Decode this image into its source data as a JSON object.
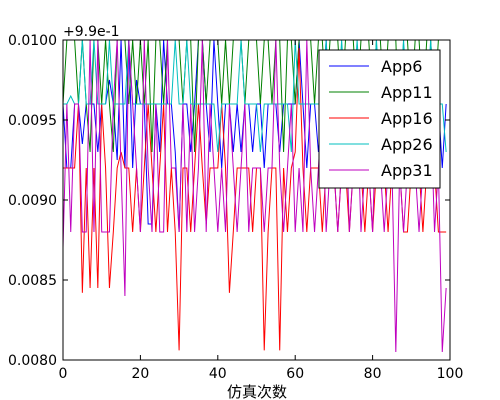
{
  "chart_data": {
    "type": "line",
    "xlabel": "仿真次数",
    "ylabel": "",
    "offset_text": "+9.9e-1",
    "xlim": [
      0,
      100
    ],
    "ylim": [
      0.008,
      0.01
    ],
    "x_ticks": [
      "0",
      "20",
      "40",
      "60",
      "80",
      "100"
    ],
    "y_ticks": [
      "0.0080",
      "0.0085",
      "0.0090",
      "0.0095",
      "0.0100"
    ],
    "grid": false,
    "legend_position": "top-right",
    "series": [
      {
        "name": "App6",
        "color": "#0000ff",
        "values": [
          0.0096,
          0.0092,
          0.0092,
          0.0096,
          0.0096,
          0.00935,
          0.0096,
          0.0096,
          0.0096,
          0.0093,
          0.0096,
          0.0096,
          0.00975,
          0.0096,
          0.00925,
          0.01,
          0.0092,
          0.01,
          0.0092,
          0.00975,
          0.0096,
          0.0096,
          0.00885,
          0.00885,
          0.0096,
          0.0093,
          0.01,
          0.0096,
          0.0096,
          0.0093,
          0.0088,
          0.0096,
          0.0096,
          0.0093,
          0.0096,
          0.01,
          0.01,
          0.0096,
          0.0093,
          0.01,
          0.0096,
          0.0092,
          0.0096,
          0.0096,
          0.0093,
          0.0096,
          0.0093,
          0.0096,
          0.0096,
          0.0093,
          0.0096,
          0.0096,
          0.0092,
          0.0096,
          0.0096,
          0.0096,
          0.0093,
          0.0096,
          0.0096,
          0.0096,
          0.0096,
          0.01,
          0.0096,
          0.0092,
          0.0096,
          0.0096,
          0.0093,
          0.0096,
          0.01,
          0.0093,
          0.0096,
          0.0096,
          0.0093,
          0.0096,
          0.0096,
          0.0096,
          0.0093,
          0.0096,
          0.0096,
          0.0096,
          0.0093,
          0.0096,
          0.0096,
          0.0093,
          0.0096,
          0.0096,
          0.0096,
          0.0093,
          0.0096,
          0.0096,
          0.0092,
          0.0096,
          0.0096,
          0.0096,
          0.0093,
          0.0096,
          0.0096,
          0.0096,
          0.0092,
          0.0096
        ]
      },
      {
        "name": "App11",
        "color": "#008000",
        "values": [
          0.0096,
          0.01,
          0.01,
          0.01,
          0.0096,
          0.01,
          0.0096,
          0.0093,
          0.01,
          0.01,
          0.0096,
          0.01,
          0.0096,
          0.0093,
          0.01,
          0.01,
          0.01,
          0.0096,
          0.01,
          0.0096,
          0.01,
          0.0096,
          0.01,
          0.0093,
          0.01,
          0.01,
          0.0096,
          0.01,
          0.01,
          0.01,
          0.01,
          0.0096,
          0.01,
          0.01,
          0.0093,
          0.01,
          0.01,
          0.0096,
          0.01,
          0.01,
          0.01,
          0.0096,
          0.01,
          0.0096,
          0.01,
          0.01,
          0.01,
          0.0096,
          0.01,
          0.01,
          0.01,
          0.0096,
          0.01,
          0.01,
          0.0096,
          0.01,
          0.01,
          0.0093,
          0.01,
          0.01,
          0.0096,
          0.01,
          0.01,
          0.01,
          0.01,
          0.0096,
          0.01,
          0.01,
          0.0096,
          0.01,
          0.01,
          0.01,
          0.0096,
          0.01,
          0.01,
          0.01,
          0.0096,
          0.01,
          0.01,
          0.01,
          0.0096,
          0.01,
          0.01,
          0.0096,
          0.01,
          0.01,
          0.01,
          0.0093,
          0.01,
          0.01,
          0.0096,
          0.01,
          0.01,
          0.0096,
          0.01,
          0.01,
          0.0096,
          0.01,
          0.01,
          0.01
        ]
      },
      {
        "name": "App16",
        "color": "#ff0000",
        "values": [
          0.0092,
          0.0092,
          0.0092,
          0.0092,
          0.0096,
          0.00842,
          0.0092,
          0.00845,
          0.0092,
          0.00845,
          0.0096,
          0.0092,
          0.00845,
          0.0088,
          0.0092,
          0.0093,
          0.0092,
          0.0092,
          0.0088,
          0.0092,
          0.0088,
          0.0092,
          0.0096,
          0.0092,
          0.0088,
          0.0092,
          0.0096,
          0.0088,
          0.0092,
          0.0088,
          0.00806,
          0.0092,
          0.0092,
          0.0088,
          0.0092,
          0.0096,
          0.0092,
          0.00885,
          0.0092,
          0.0092,
          0.0092,
          0.0096,
          0.0092,
          0.00842,
          0.0088,
          0.0092,
          0.0092,
          0.0092,
          0.0092,
          0.0088,
          0.0092,
          0.0092,
          0.00806,
          0.0088,
          0.0092,
          0.0092,
          0.00806,
          0.0092,
          0.0088,
          0.0092,
          0.0093,
          0.00995,
          0.0092,
          0.0088,
          0.0092,
          0.0092,
          0.0092,
          0.0088,
          0.0092,
          0.0092,
          0.0092,
          0.0088,
          0.0092,
          0.0092,
          0.0088,
          0.0092,
          0.0092,
          0.0092,
          0.0088,
          0.0092,
          0.0088,
          0.0092,
          0.0092,
          0.0092,
          0.0088,
          0.0092,
          0.0092,
          0.0092,
          0.0088,
          0.0088,
          0.0092,
          0.0092,
          0.0092,
          0.0088,
          0.0092,
          0.0092,
          0.0092,
          0.0088,
          0.0088,
          0.0088
        ]
      },
      {
        "name": "App26",
        "color": "#00bfbf",
        "values": [
          0.0096,
          0.0096,
          0.00965,
          0.0096,
          0.0096,
          0.01,
          0.0096,
          0.0096,
          0.01,
          0.0096,
          0.0096,
          0.0096,
          0.01,
          0.0096,
          0.0096,
          0.0096,
          0.0096,
          0.01,
          0.0096,
          0.0096,
          0.0096,
          0.0096,
          0.0096,
          0.0096,
          0.0096,
          0.0096,
          0.0096,
          0.0096,
          0.0096,
          0.01,
          0.0096,
          0.0096,
          0.01,
          0.0096,
          0.0096,
          0.0096,
          0.0096,
          0.0096,
          0.0096,
          0.0096,
          0.0093,
          0.0096,
          0.0096,
          0.0096,
          0.0096,
          0.0096,
          0.01,
          0.0096,
          0.0096,
          0.0096,
          0.0096,
          0.0093,
          0.0096,
          0.0096,
          0.0096,
          0.0096,
          0.0096,
          0.0096,
          0.0096,
          0.0093,
          0.01,
          0.0096,
          0.0096,
          0.0096,
          0.0096,
          0.0096,
          0.0096,
          0.0096,
          0.01,
          0.0096,
          0.0096,
          0.0096,
          0.01,
          0.0096,
          0.0096,
          0.0096,
          0.01,
          0.0096,
          0.0096,
          0.0096,
          0.0096,
          0.01,
          0.0096,
          0.0096,
          0.0096,
          0.0096,
          0.0096,
          0.0096,
          0.01,
          0.0096,
          0.0096,
          0.0096,
          0.0096,
          0.0096,
          0.0096,
          0.01,
          0.0096,
          0.0096,
          0.0096,
          0.0093
        ]
      },
      {
        "name": "App31",
        "color": "#bf00bf",
        "values": [
          0.0087,
          0.0096,
          0.0088,
          0.0096,
          0.0096,
          0.0088,
          0.0088,
          0.01,
          0.0088,
          0.01,
          0.0088,
          0.0088,
          0.0088,
          0.0096,
          0.01,
          0.0092,
          0.0084,
          0.01,
          0.0096,
          0.0092,
          0.0088,
          0.01,
          0.0092,
          0.0088,
          0.0096,
          0.0088,
          0.0088,
          0.01,
          0.0092,
          0.0092,
          0.0088,
          0.0096,
          0.0088,
          0.0096,
          0.0088,
          0.0092,
          0.01,
          0.0088,
          0.0096,
          0.0092,
          0.0088,
          0.0092,
          0.0088,
          0.0096,
          0.0092,
          0.0088,
          0.0092,
          0.0096,
          0.0088,
          0.0092,
          0.0092,
          0.0092,
          0.0088,
          0.0092,
          0.0092,
          0.01,
          0.0092,
          0.0088,
          0.0092,
          0.0096,
          0.0088,
          0.0092,
          0.0088,
          0.01,
          0.0092,
          0.0088,
          0.0092,
          0.0096,
          0.0088,
          0.0092,
          0.0092,
          0.0088,
          0.0092,
          0.0096,
          0.0088,
          0.0092,
          0.0096,
          0.0088,
          0.0092,
          0.0092,
          0.0088,
          0.0096,
          0.0092,
          0.0088,
          0.0092,
          0.0092,
          0.00805,
          0.0092,
          0.0088,
          0.0092,
          0.0096,
          0.0092,
          0.0088,
          0.0092,
          0.0092,
          0.0096,
          0.0088,
          0.0092,
          0.00805,
          0.00845
        ]
      }
    ]
  }
}
